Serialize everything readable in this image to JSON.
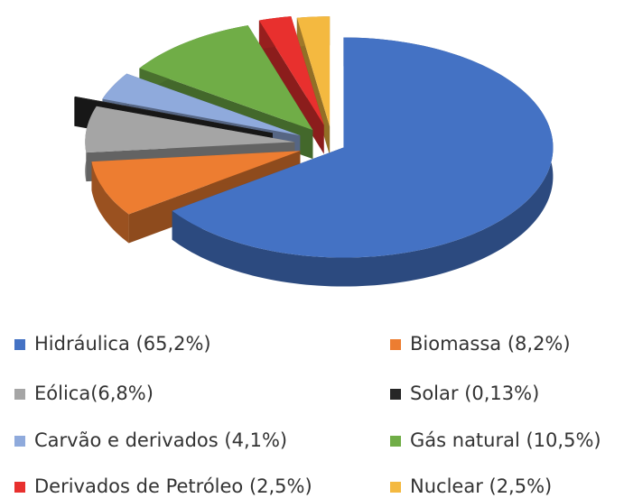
{
  "chart_data": {
    "type": "pie",
    "categories": [
      "Hidráulica (65,2%)",
      "Biomassa (8,2%)",
      "Eólica(6,8%)",
      "Solar (0,13%)",
      "Carvão e derivados (4,1%)",
      "Gás natural (10,5%)",
      "Derivados de Petróleo (2,5%)",
      "Nuclear (2,5%)"
    ],
    "values": [
      65.2,
      8.2,
      6.8,
      0.13,
      4.1,
      10.5,
      2.5,
      2.5
    ],
    "colors": [
      "#4472c4",
      "#ed7d31",
      "#a5a5a5",
      "#262626",
      "#8faadc",
      "#70ad47",
      "#e8302e",
      "#f4b940"
    ],
    "legend": "bottom"
  }
}
